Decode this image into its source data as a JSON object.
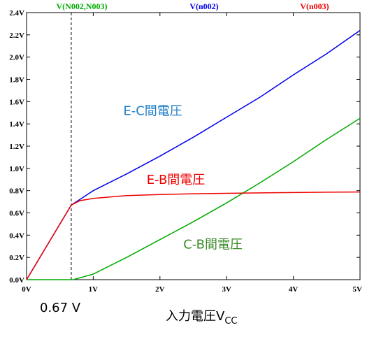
{
  "chart_data": {
    "type": "line",
    "xlabel": "入力電圧V",
    "xlabel_subscript": "CC",
    "x_ticks": [
      "0V",
      "1V",
      "2V",
      "3V",
      "4V",
      "5V"
    ],
    "y_ticks": [
      "0.0V",
      "0.2V",
      "0.4V",
      "0.6V",
      "0.8V",
      "1.0V",
      "1.2V",
      "1.4V",
      "1.6V",
      "1.8V",
      "2.0V",
      "2.2V",
      "2.4V"
    ],
    "xlim": [
      0,
      5
    ],
    "ylim": [
      0,
      2.4
    ],
    "grid": false,
    "marker": {
      "x": 0.67,
      "label": "0.67 V"
    },
    "series": [
      {
        "name": "V(N002,N003)",
        "color": "#00aa00",
        "x": [
          0,
          0.7,
          1.0,
          1.5,
          2.0,
          2.5,
          3.0,
          3.5,
          4.0,
          4.5,
          5.0
        ],
        "y": [
          0,
          0,
          0.05,
          0.2,
          0.36,
          0.52,
          0.69,
          0.87,
          1.06,
          1.26,
          1.45
        ]
      },
      {
        "name": "V(n002)",
        "color": "#0000ee",
        "x": [
          0,
          0.67,
          1.0,
          1.5,
          2.0,
          2.5,
          3.0,
          3.5,
          4.0,
          4.5,
          5.0
        ],
        "y": [
          0,
          0.67,
          0.8,
          0.95,
          1.11,
          1.28,
          1.46,
          1.64,
          1.84,
          2.03,
          2.24
        ]
      },
      {
        "name": "V(n003)",
        "color": "#ee0000",
        "x": [
          0,
          0.67,
          0.8,
          1.0,
          1.5,
          2.0,
          2.5,
          3.0,
          3.5,
          4.0,
          4.5,
          5.0
        ],
        "y": [
          0,
          0.67,
          0.71,
          0.73,
          0.755,
          0.765,
          0.772,
          0.776,
          0.78,
          0.783,
          0.786,
          0.788
        ]
      }
    ],
    "annotations": [
      {
        "text": "E-C間電圧",
        "color": "#1e7ec8",
        "x": 1.45,
        "y": 1.48
      },
      {
        "text": "E-B間電圧",
        "color": "#ee0000",
        "x": 1.8,
        "y": 0.86
      },
      {
        "text": "C-B間電圧",
        "color": "#3a8a2a",
        "x": 2.35,
        "y": 0.28
      }
    ]
  }
}
